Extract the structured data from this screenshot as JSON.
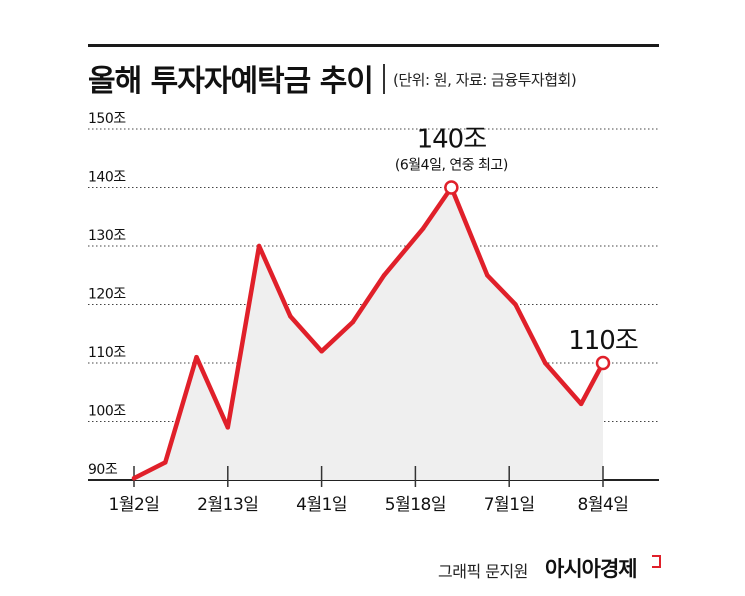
{
  "header": {
    "title": "올해 투자자예탁금 추이",
    "subtitle": "(단위: 원, 자료: 금융투자협회)"
  },
  "footer": {
    "credit": "그래픽 문지원",
    "brand": "아시아경제"
  },
  "colors": {
    "line": "#e0202a",
    "area": "#efefef",
    "grid": "#444444",
    "text": "#111111"
  },
  "chart_data": {
    "type": "area",
    "ylim": [
      90,
      150
    ],
    "yticks": [
      90,
      100,
      110,
      120,
      130,
      140,
      150
    ],
    "ytick_labels": [
      "90조",
      "100조",
      "110조",
      "120조",
      "130조",
      "140조",
      "150조"
    ],
    "xticks": [
      {
        "index": 0,
        "label": "1월2일"
      },
      {
        "index": 6,
        "label": "2월13일"
      },
      {
        "index": 12,
        "label": "4월1일"
      },
      {
        "index": 18,
        "label": "5월18일"
      },
      {
        "index": 24,
        "label": "7월1일"
      },
      {
        "index": 30,
        "label": "8월4일"
      }
    ],
    "values": [
      90.3,
      93,
      111,
      99,
      130,
      118,
      112,
      117,
      125,
      133,
      140,
      125,
      120,
      110,
      103,
      110
    ],
    "x_index": [
      0,
      2,
      4,
      6,
      8,
      10,
      12,
      14,
      16,
      18.5,
      20.3,
      22.6,
      24.4,
      26.3,
      28.6,
      30
    ],
    "annotations": [
      {
        "point": 10,
        "label": "140조",
        "sublabel": "(6월4일, 연중 최고)"
      },
      {
        "point": 15,
        "label": "110조",
        "sublabel": ""
      }
    ]
  }
}
